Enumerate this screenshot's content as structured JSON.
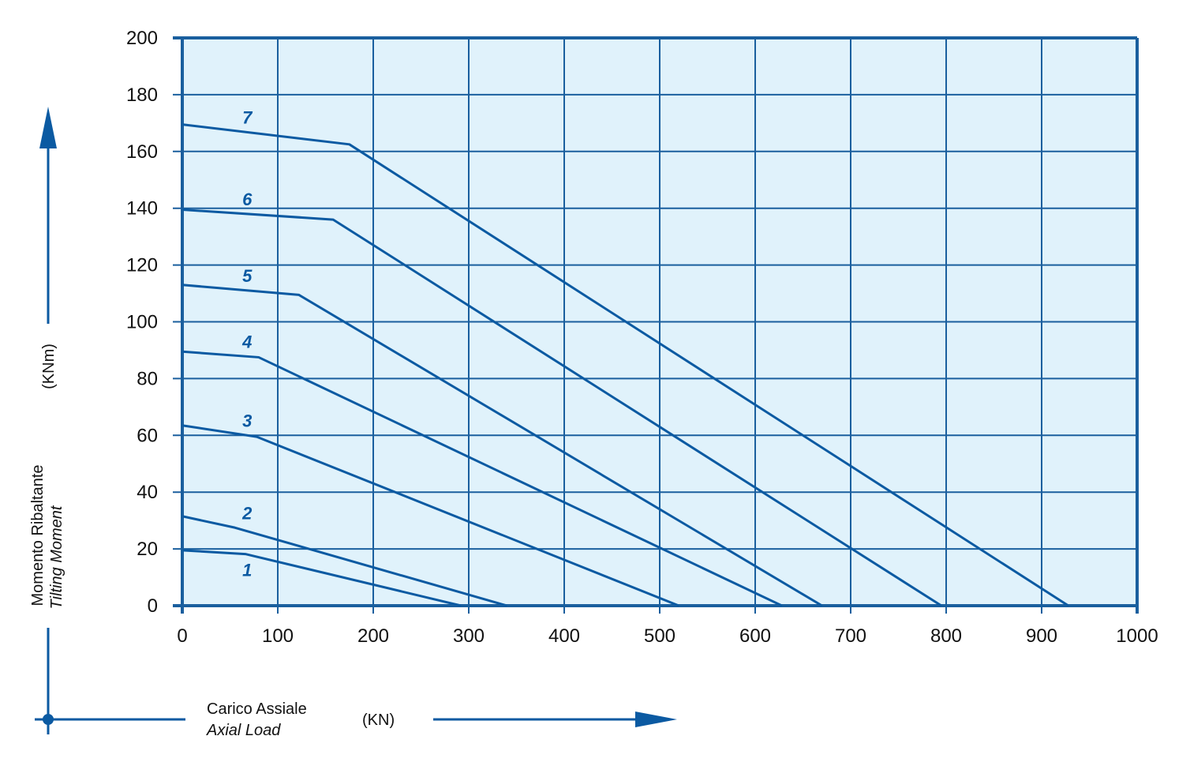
{
  "chart_data": {
    "type": "line",
    "x_ticks": [
      "0",
      "100",
      "200",
      "300",
      "400",
      "500",
      "600",
      "700",
      "800",
      "900",
      "1000"
    ],
    "y_ticks": [
      "0",
      "20",
      "40",
      "60",
      "80",
      "100",
      "120",
      "140",
      "160",
      "180",
      "200"
    ],
    "xlim": [
      0,
      1000
    ],
    "ylim": [
      0,
      200
    ],
    "grid": true,
    "xlabel_line1": "Carico Assiale",
    "xlabel_line2": "Axial Load",
    "xlabel_unit": "(KN)",
    "ylabel_line1": "Momento Ribaltante",
    "ylabel_line2": "Tilting Moment",
    "ylabel_unit": "(KNm)",
    "series": [
      {
        "name": "1",
        "x": [
          0,
          66,
          292
        ],
        "y": [
          19.5,
          18.2,
          0
        ]
      },
      {
        "name": "2",
        "x": [
          0,
          55,
          340
        ],
        "y": [
          31.5,
          27.5,
          0
        ]
      },
      {
        "name": "3",
        "x": [
          0,
          78,
          520
        ],
        "y": [
          63.5,
          59.5,
          0
        ]
      },
      {
        "name": "4",
        "x": [
          0,
          80,
          628
        ],
        "y": [
          89.5,
          87.5,
          0
        ]
      },
      {
        "name": "5",
        "x": [
          0,
          122,
          670
        ],
        "y": [
          113,
          109.5,
          0
        ]
      },
      {
        "name": "6",
        "x": [
          0,
          158,
          795
        ],
        "y": [
          139.5,
          136,
          0
        ]
      },
      {
        "name": "7",
        "x": [
          0,
          175,
          928
        ],
        "y": [
          169.5,
          162.5,
          0
        ]
      }
    ],
    "colors": {
      "line": "#0b5aa2",
      "grid": "#1a5f9e",
      "plot_bg": "#e0f2fb"
    }
  }
}
